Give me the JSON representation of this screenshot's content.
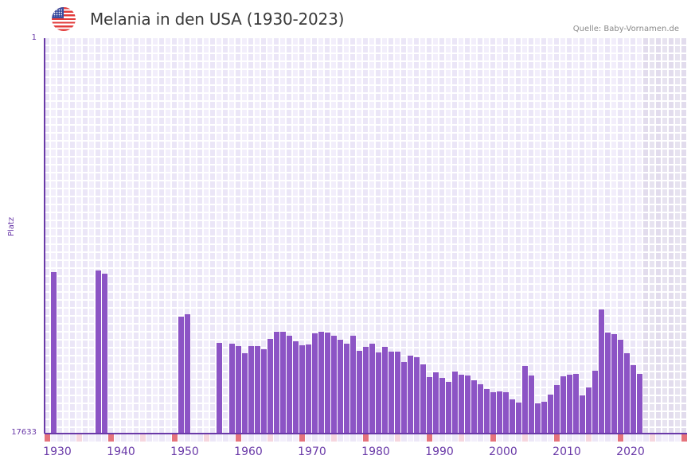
{
  "header": {
    "flag_icon": "us-flag-icon",
    "title": "Melania in den USA (1930-2023)",
    "source": "Quelle: Baby-Vornamen.de"
  },
  "axes": {
    "y_top_label": "1",
    "y_bottom_label": "17633",
    "y_title": "Platz",
    "x_ticks": [
      "1930",
      "1940",
      "1950",
      "1960",
      "1970",
      "1980",
      "1990",
      "2000",
      "2010",
      "2020"
    ]
  },
  "colors": {
    "bar": "#8c54c5",
    "axis": "#6a3aa8",
    "grid_a": "#ebe6f7",
    "grid_b": "#f2eefb",
    "future_a": "#e2dced",
    "future_b": "#e7e3f0",
    "decade_marker": "#e5737c",
    "half_decade_marker": "#f6d6de",
    "strip_a": "#ece7f7",
    "strip_b": "#f3effb"
  },
  "chart_data": {
    "type": "bar",
    "title": "Melania in den USA (1930-2023)",
    "xlabel": "",
    "ylabel": "Platz",
    "y_scale": "log (rank, inverted: 1 at top, 17633 at bottom)",
    "ylim": [
      17633,
      1
    ],
    "x_range": [
      1930,
      2030
    ],
    "grid": true,
    "legend": null,
    "categories": [
      1931,
      1938,
      1939,
      1951,
      1952,
      1957,
      1959,
      1960,
      1961,
      1962,
      1963,
      1964,
      1965,
      1966,
      1967,
      1968,
      1969,
      1970,
      1971,
      1972,
      1973,
      1974,
      1975,
      1976,
      1977,
      1978,
      1979,
      1980,
      1981,
      1982,
      1983,
      1984,
      1985,
      1986,
      1987,
      1988,
      1989,
      1990,
      1991,
      1992,
      1993,
      1994,
      1995,
      1996,
      1997,
      1998,
      1999,
      2000,
      2001,
      2002,
      2003,
      2004,
      2005,
      2006,
      2007,
      2008,
      2009,
      2010,
      2011,
      2012,
      2013,
      2014,
      2015,
      2016,
      2017,
      2018,
      2019,
      2020,
      2021,
      2022,
      2023
    ],
    "values": [
      329,
      316,
      342,
      992,
      935,
      1901,
      1938,
      2056,
      2455,
      2056,
      2056,
      2225,
      1722,
      1442,
      1442,
      1592,
      1828,
      2017,
      1977,
      1501,
      1442,
      1471,
      1592,
      1757,
      1938,
      1592,
      2314,
      2098,
      1938,
      2408,
      2098,
      2361,
      2361,
      3050,
      2606,
      2711,
      3236,
      4437,
      3942,
      4527,
      4993,
      3865,
      4180,
      4266,
      4799,
      5295,
      5960,
      6452,
      6324,
      6452,
      7707,
      8340,
      3365,
      4266,
      8504,
      8178,
      6846,
      5402,
      4350,
      4180,
      4100,
      6981,
      5731,
      3790,
      830,
      1471,
      1530,
      1757,
      2455,
      3300,
      4100
    ],
    "annotations": [
      "Quelle: Baby-Vornamen.de"
    ]
  }
}
